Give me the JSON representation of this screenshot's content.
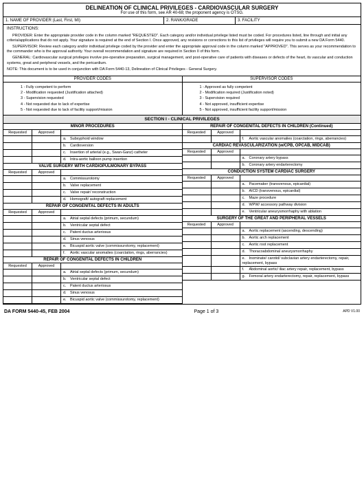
{
  "title": {
    "main": "DELINEATION OF CLINICAL PRIVILEGES - CARDIOVASCULAR SURGERY",
    "sub": "For use of this form, see AR 40-68; the proponent agency is OTSG."
  },
  "header": {
    "name": "1. NAME OF PROVIDER (Last, First, MI)",
    "rank": "2. RANK/GRADE",
    "facility": "3. FACILITY"
  },
  "instructions": {
    "heading": "INSTRUCTIONS:",
    "p1": "PROVIDER: Enter the appropriate provider code in the column marked \"REQUESTED\". Each category and/or individual privilege listed must be coded. For procedures listed, line through and initial any criteria/applications that do not apply. Your signature is required at the end of Section I. Once approved, any revisions or corrections to this list of privileges will require you to submit a new DA Form 5440.",
    "p2": "SUPERVISOR: Review each category and/or individual privilege coded by the provider and enter the appropriate approval code in the column marked \"APPROVED\". This serves as your recommendation to the commander who is the approval authority. Your overall recommendation and signature are required in Section II of this form.",
    "p3": "GENERAL: Cardiovascular surgical privileges involve pre-operative preparation, surgical management, and post-operative care of patients with diseases or defects of the heart, its vascular and conduction systems, great and peripheral vessels, and the pericardium.",
    "p4": "NOTE: This document is to be used in conjunction with DA Form 5440-13, Delineation of Clinical Privileges - General Surgery."
  },
  "codes": {
    "providerHead": "PROVIDER CODES",
    "supervisorHead": "SUPERVISOR CODES",
    "provider": [
      "1 - Fully competent to perform",
      "2 - Modification requested (Justification attached)",
      "3 - Supervision requested",
      "4 - Not requested due to lack of expertise",
      "5 - Not requested due to lack of facility support/mission"
    ],
    "supervisor": [
      "1 - Approved as fully competent",
      "2 - Modification required (Justification noted)",
      "3 - Supervision required",
      "4 - Not approved, insufficient expertise",
      "5 - Not approved, insufficient facility support/mission"
    ]
  },
  "sectionHead": "SECTION I - CLINICAL PRIVILEGES",
  "labels": {
    "requested": "Requested",
    "approved": "Approved"
  },
  "left": [
    {
      "head": "MINOR PROCEDURES",
      "items": [
        {
          "l": "a.",
          "t": "Subxyphoid window"
        },
        {
          "l": "b.",
          "t": "Cardioversion"
        },
        {
          "l": "c.",
          "t": "Insertion of arterial (e.g., Swan-Ganz) catheter"
        },
        {
          "l": "d.",
          "t": "Intra-aortic balloon pump insertion"
        }
      ]
    },
    {
      "head": "VALVE SURGERY WITH CARDIOPULMONARY BYPASS",
      "items": [
        {
          "l": "a.",
          "t": "Commissurotomy"
        },
        {
          "l": "b.",
          "t": "Valve replacement"
        },
        {
          "l": "c.",
          "t": "Valve repair/ reconstruction"
        },
        {
          "l": "d.",
          "t": "Homograft/ autograft replacement"
        }
      ]
    },
    {
      "head": "REPAIR OF CONGENITAL DEFECTS IN ADULTS",
      "items": [
        {
          "l": "a.",
          "t": "Atrial septal defects (primum, secundum)"
        },
        {
          "l": "b.",
          "t": "Ventricular septal defect"
        },
        {
          "l": "c.",
          "t": "Patent ductus arteriosus"
        },
        {
          "l": "d.",
          "t": "Sinus venosus"
        },
        {
          "l": "e.",
          "t": "Bicuspid aortic valve (commissurotomy, replacement)"
        },
        {
          "l": "f.",
          "t": "Aortic vascular anomalies (coarctation, rings, aberrancies)"
        }
      ]
    },
    {
      "head": "REPAIR OF CONGENITAL DEFECTS IN CHILDREN",
      "items": [
        {
          "l": "a.",
          "t": "Atrial septal defects (primum, secundum)"
        },
        {
          "l": "b.",
          "t": "Ventricular septal defect"
        },
        {
          "l": "c.",
          "t": "Patent ductus arteriosus"
        },
        {
          "l": "d.",
          "t": "Sinus venosus"
        },
        {
          "l": "e.",
          "t": "Bicuspid aortic valve (commissurotomy, replacement)"
        }
      ]
    }
  ],
  "right": [
    {
      "head": "REPAIR OF CONGENITAL DEFECTS IN CHILDREN (Continued)",
      "noRA": false,
      "items": [
        {
          "l": "f.",
          "t": "Aortic vascular anomalies (coarctation, rings, aberrancies)"
        }
      ]
    },
    {
      "head": "CARDIAC REVASCULARIZATION (w/CPB, OPCAB, MIDCAB)",
      "items": [
        {
          "l": "a.",
          "t": "Coronary artery bypass"
        },
        {
          "l": "b.",
          "t": "Coronary artery endarterectomy"
        }
      ]
    },
    {
      "head": "CONDUCTION SYSTEM CARDIAC SURGERY",
      "items": [
        {
          "l": "a.",
          "t": "Pacemaker (transvenous, epicardial)"
        },
        {
          "l": "b.",
          "t": "AICD (transvenous, epicardial)"
        },
        {
          "l": "c.",
          "t": "Maze procedure"
        },
        {
          "l": "d.",
          "t": "WPW/ accessory pathway division"
        },
        {
          "l": "e.",
          "t": "Ventricular aneurysmorrhaphy with ablation"
        }
      ]
    },
    {
      "head": "SURGERY OF THE GREAT AND PERIPHERAL VESSELS",
      "items": [
        {
          "l": "a.",
          "t": "Aortic replacement (ascending, descending)"
        },
        {
          "l": "b.",
          "t": "Aortic arch replacement"
        },
        {
          "l": "c.",
          "t": "Aortic root replacement"
        },
        {
          "l": "d.",
          "t": "Thoracoabdominal aneurysmorrhaphy"
        },
        {
          "l": "e.",
          "t": "Inominate/ carotid/ subclavian artery endarterectomy, repair, replacement, bypass"
        },
        {
          "l": "f.",
          "t": "Abdominal aortic/ iliac artery repair, replacement, bypass"
        },
        {
          "l": "g.",
          "t": "Femoral artery endarterectomy, repair, replacement, bypass"
        }
      ]
    }
  ],
  "footer": {
    "left": "DA FORM 5440-45, FEB 2004",
    "center": "Page 1 of 3",
    "right": "APD V1.00"
  }
}
